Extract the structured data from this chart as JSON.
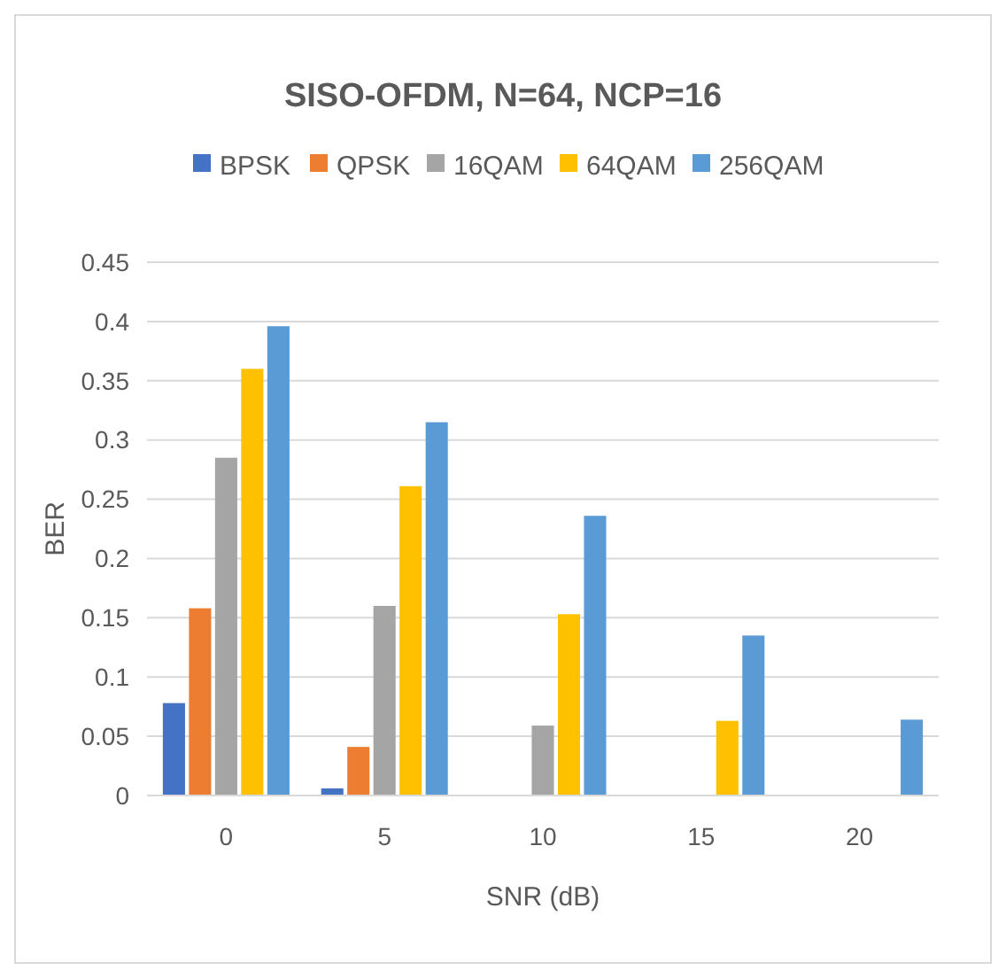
{
  "chart_data": {
    "type": "bar",
    "title": "SISO-OFDM,  N=64, NCP=16",
    "xlabel": "SNR (dB)",
    "ylabel": "BER",
    "categories": [
      "0",
      "5",
      "10",
      "15",
      "20"
    ],
    "series": [
      {
        "name": "BPSK",
        "color": "#4472c4",
        "values": [
          0.078,
          0.006,
          0,
          0,
          0
        ]
      },
      {
        "name": "QPSK",
        "color": "#ed7d31",
        "values": [
          0.158,
          0.041,
          0,
          0,
          0
        ]
      },
      {
        "name": "16QAM",
        "color": "#a5a5a5",
        "values": [
          0.285,
          0.16,
          0.059,
          0,
          0
        ]
      },
      {
        "name": "64QAM",
        "color": "#ffc000",
        "values": [
          0.36,
          0.261,
          0.153,
          0.063,
          0
        ]
      },
      {
        "name": "256QAM",
        "color": "#5b9bd5",
        "values": [
          0.396,
          0.315,
          0.236,
          0.135,
          0.064
        ]
      }
    ],
    "ylim": [
      0,
      0.45
    ],
    "yticks": [
      0,
      0.05,
      0.1,
      0.15,
      0.2,
      0.25,
      0.3,
      0.35,
      0.4,
      0.45
    ],
    "grid": "y",
    "legend": "top"
  }
}
